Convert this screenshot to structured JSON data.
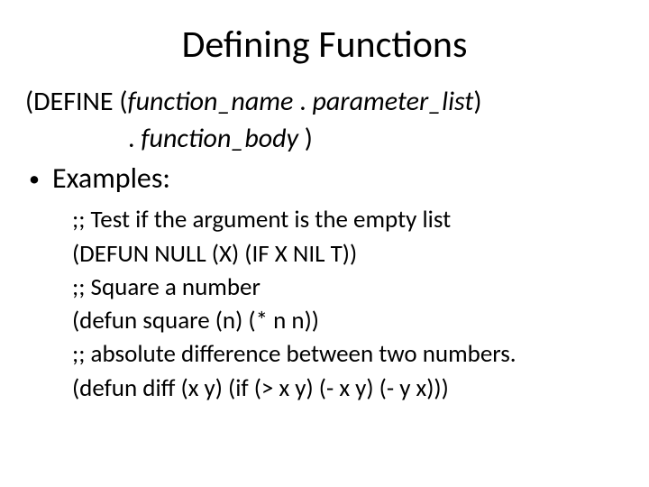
{
  "title": "Defining Functions",
  "syntax": {
    "line1_prefix": "(DEFINE (",
    "line1_fn": "function_name",
    "line1_mid": " . ",
    "line1_pl": "parameter_list",
    "line1_suffix": ")",
    "line2_prefix": ". ",
    "line2_fb": "function_body",
    "line2_suffix": " )"
  },
  "bullet_label": "Examples:",
  "code": {
    "l1": ";; Test if the argument is the empty list",
    "l2": "(DEFUN  NULL (X) (IF X NIL T))",
    "l3": ";; Square a number",
    "l4": "(defun square (n) (* n n))",
    "l5": ";; absolute difference between two numbers.",
    "l6": "(defun diff (x y)  (if (> x y)  (- x y) (- y x)))"
  },
  "colors": {
    "background": "#ffffff",
    "text": "#000000"
  },
  "fonts": {
    "title_size_pt": 42,
    "body_size_pt": 30,
    "bullet_size_pt": 32,
    "code_size_pt": 27
  }
}
